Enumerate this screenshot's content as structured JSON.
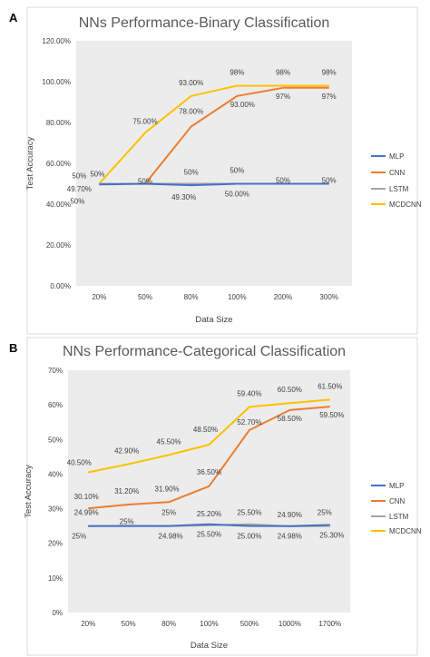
{
  "chart_data": [
    {
      "panel": "A",
      "type": "line",
      "title": "NNs Performance-Binary Classification",
      "xlabel": "Data Size",
      "ylabel": "Test Accuracy",
      "categories": [
        "20%",
        "50%",
        "80%",
        "100%",
        "200%",
        "300%"
      ],
      "ylim": [
        0,
        120
      ],
      "yticks": [
        "0.00%",
        "20.00%",
        "40.00%",
        "60.00%",
        "80.00%",
        "100.00%",
        "120.00%"
      ],
      "grid": false,
      "legend_position": "right",
      "series": [
        {
          "name": "MLP",
          "color": "#4472C4",
          "values": [
            49.7,
            50,
            49.3,
            50,
            50,
            50
          ]
        },
        {
          "name": "CNN",
          "color": "#ED7D31",
          "values": [
            50,
            50,
            78,
            93,
            97,
            97
          ]
        },
        {
          "name": "LSTM",
          "color": "#A5A5A5",
          "values": [
            50,
            50,
            50,
            50,
            50,
            50
          ]
        },
        {
          "name": "MCDCNN",
          "color": "#FFC000",
          "values": [
            50,
            75,
            93,
            98,
            98,
            98
          ]
        }
      ],
      "data_labels": [
        {
          "text": "50%",
          "series": "MCDCNN",
          "i": 0
        },
        {
          "text": "49.70%",
          "series": "MLP",
          "i": 0
        },
        {
          "text": "50%",
          "series": "LSTM",
          "i": 0
        },
        {
          "text": "50%",
          "series": "CNN",
          "i": 0
        },
        {
          "text": "75.00%",
          "series": "MCDCNN",
          "i": 1
        },
        {
          "text": "50%",
          "series": "CNN",
          "i": 1
        },
        {
          "text": "93.00%",
          "series": "MCDCNN",
          "i": 2
        },
        {
          "text": "78.00%",
          "series": "CNN",
          "i": 2
        },
        {
          "text": "50%",
          "series": "LSTM",
          "i": 2
        },
        {
          "text": "49.30%",
          "series": "MLP",
          "i": 2
        },
        {
          "text": "98%",
          "series": "MCDCNN",
          "i": 3
        },
        {
          "text": "93.00%",
          "series": "CNN",
          "i": 3
        },
        {
          "text": "50%",
          "series": "LSTM",
          "i": 3
        },
        {
          "text": "50.00%",
          "series": "MLP",
          "i": 3
        },
        {
          "text": "98%",
          "series": "MCDCNN",
          "i": 4
        },
        {
          "text": "97%",
          "series": "CNN",
          "i": 4
        },
        {
          "text": "50%",
          "series": "LSTM",
          "i": 4
        },
        {
          "text": "98%",
          "series": "MCDCNN",
          "i": 5
        },
        {
          "text": "97%",
          "series": "CNN",
          "i": 5
        },
        {
          "text": "50%",
          "series": "LSTM",
          "i": 5
        }
      ]
    },
    {
      "panel": "B",
      "type": "line",
      "title": "NNs Performance-Categorical Classification",
      "xlabel": "Data Size",
      "ylabel": "Test Accuracy",
      "categories": [
        "20%",
        "50%",
        "80%",
        "100%",
        "500%",
        "1000%",
        "1700%"
      ],
      "ylim": [
        0,
        70
      ],
      "yticks": [
        "0%",
        "10%",
        "20%",
        "30%",
        "40%",
        "50%",
        "60%",
        "70%"
      ],
      "grid": false,
      "legend_position": "right",
      "series": [
        {
          "name": "MLP",
          "color": "#4472C4",
          "values": [
            24.99,
            25,
            25,
            25.5,
            25,
            24.98,
            25.3
          ]
        },
        {
          "name": "CNN",
          "color": "#ED7D31",
          "values": [
            30.1,
            31.2,
            31.9,
            36.5,
            52.7,
            58.5,
            59.5
          ]
        },
        {
          "name": "LSTM",
          "color": "#A5A5A5",
          "values": [
            25,
            25,
            24.98,
            25.2,
            25.5,
            24.9,
            25
          ]
        },
        {
          "name": "MCDCNN",
          "color": "#FFC000",
          "values": [
            40.5,
            42.9,
            45.5,
            48.5,
            59.4,
            60.5,
            61.5
          ]
        }
      ],
      "data_labels": [
        {
          "text": "40.50%",
          "series": "MCDCNN",
          "i": 0
        },
        {
          "text": "30.10%",
          "series": "CNN",
          "i": 0
        },
        {
          "text": "24.99%",
          "series": "MLP",
          "i": 0
        },
        {
          "text": "25%",
          "series": "LSTM",
          "i": 0
        },
        {
          "text": "42.90%",
          "series": "MCDCNN",
          "i": 1
        },
        {
          "text": "31.20%",
          "series": "CNN",
          "i": 1
        },
        {
          "text": "25%",
          "series": "MLP",
          "i": 1
        },
        {
          "text": "45.50%",
          "series": "MCDCNN",
          "i": 2
        },
        {
          "text": "31.90%",
          "series": "CNN",
          "i": 2
        },
        {
          "text": "25%",
          "series": "MLP",
          "i": 2
        },
        {
          "text": "24.98%",
          "series": "LSTM",
          "i": 2
        },
        {
          "text": "48.50%",
          "series": "MCDCNN",
          "i": 3
        },
        {
          "text": "36.50%",
          "series": "CNN",
          "i": 3
        },
        {
          "text": "25.20%",
          "series": "LSTM",
          "i": 3
        },
        {
          "text": "25.50%",
          "series": "MLP",
          "i": 3
        },
        {
          "text": "59.40%",
          "series": "MCDCNN",
          "i": 4
        },
        {
          "text": "52.70%",
          "series": "CNN",
          "i": 4
        },
        {
          "text": "25.50%",
          "series": "LSTM",
          "i": 4
        },
        {
          "text": "25.00%",
          "series": "MLP",
          "i": 4
        },
        {
          "text": "60.50%",
          "series": "MCDCNN",
          "i": 5
        },
        {
          "text": "58.50%",
          "series": "CNN",
          "i": 5
        },
        {
          "text": "24.90%",
          "series": "LSTM",
          "i": 5
        },
        {
          "text": "24.98%",
          "series": "MLP",
          "i": 5
        },
        {
          "text": "61.50%",
          "series": "MCDCNN",
          "i": 6
        },
        {
          "text": "59.50%",
          "series": "CNN",
          "i": 6
        },
        {
          "text": "25%",
          "series": "LSTM",
          "i": 6
        },
        {
          "text": "25.30%",
          "series": "MLP",
          "i": 6
        }
      ]
    }
  ]
}
